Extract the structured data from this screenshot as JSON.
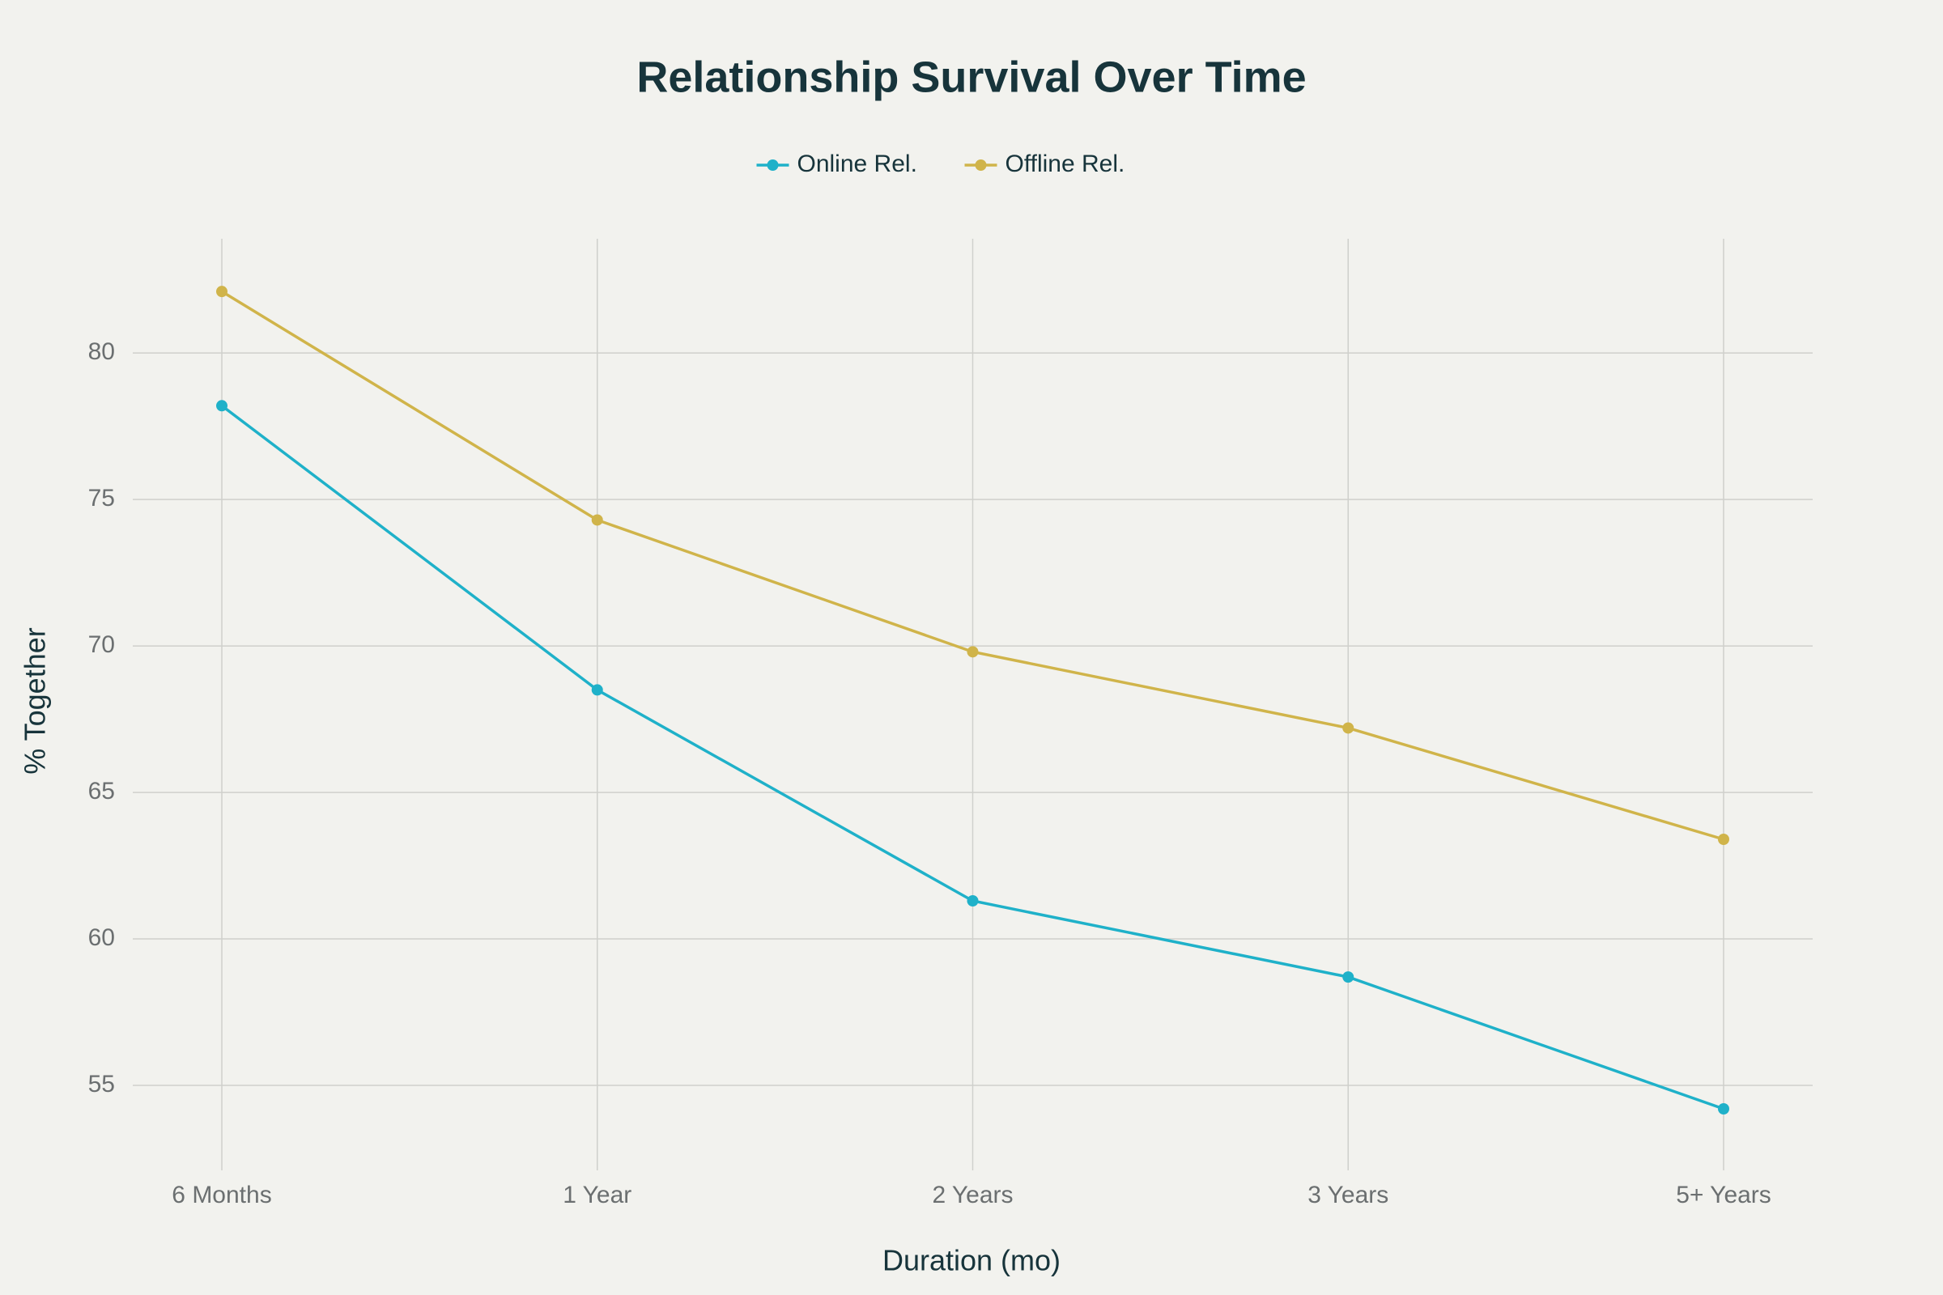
{
  "chart_data": {
    "type": "line",
    "title": "Relationship Survival Over Time",
    "x_label": "Duration (mo)",
    "y_label": "% Together",
    "categories": [
      "6 Months",
      "1 Year",
      "2 Years",
      "3 Years",
      "5+ Years"
    ],
    "series": [
      {
        "name": "Online Rel.",
        "color": "#1fb1c9",
        "values": [
          78.2,
          68.5,
          61.3,
          58.7,
          54.2
        ]
      },
      {
        "name": "Offline Rel.",
        "color": "#d0b44a",
        "values": [
          82.1,
          74.3,
          69.8,
          67.2,
          63.4
        ]
      }
    ],
    "ylim": [
      52.1,
      83.9
    ],
    "yticks": [
      55,
      60,
      65,
      70,
      75,
      80
    ],
    "grid": true,
    "legend": "top"
  }
}
